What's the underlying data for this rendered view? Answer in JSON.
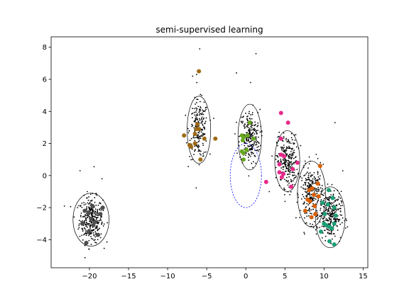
{
  "chart_data": {
    "type": "scatter",
    "title": "semi-supervised learning",
    "xlabel": "",
    "ylabel": "",
    "xlim": [
      -24.9,
      15.6
    ],
    "ylim": [
      -5.75,
      8.65
    ],
    "xticks": [
      -20,
      -15,
      -10,
      -5,
      0,
      5,
      10,
      15
    ],
    "yticks": [
      -4,
      -2,
      0,
      2,
      4,
      6,
      8
    ],
    "grid": false,
    "legend": "none",
    "unlabeled_points": {
      "color": "#000000",
      "clusters": [
        {
          "cx": -19.8,
          "cy": -2.75,
          "sx": 0.75,
          "sy": 0.7,
          "n": 320
        },
        {
          "cx": -6.0,
          "cy": 2.85,
          "sx": 0.6,
          "sy": 0.9,
          "n": 220
        },
        {
          "cx": 0.5,
          "cy": 2.4,
          "sx": 0.65,
          "sy": 0.85,
          "n": 240
        },
        {
          "cx": 5.3,
          "cy": 0.9,
          "sx": 0.65,
          "sy": 0.8,
          "n": 260
        },
        {
          "cx": 8.4,
          "cy": -1.15,
          "sx": 0.7,
          "sy": 0.85,
          "n": 260
        },
        {
          "cx": 10.8,
          "cy": -2.5,
          "sx": 0.7,
          "sy": 0.75,
          "n": 280
        }
      ],
      "outliers": [
        [
          -23.2,
          -1.9
        ],
        [
          -21.2,
          0.3
        ],
        [
          -19.4,
          0.55
        ],
        [
          -18.4,
          -0.2
        ],
        [
          -5.9,
          7.9
        ],
        [
          -6.3,
          6.3
        ],
        [
          -6.8,
          6.2
        ],
        [
          1.3,
          7.6
        ],
        [
          -1.2,
          6.4
        ],
        [
          0.6,
          5.8
        ],
        [
          11.4,
          3.3
        ],
        [
          13.0,
          -3.2
        ],
        [
          12.4,
          0.3
        ],
        [
          9.9,
          0.7
        ],
        [
          3.0,
          -1.0
        ],
        [
          0.6,
          1.2
        ],
        [
          4.1,
          2.4
        ],
        [
          7.4,
          0.5
        ]
      ]
    },
    "labeled_series": [
      {
        "color": "#4d4d4d",
        "points": [
          [
            -20.1,
            -2.3
          ],
          [
            -20.6,
            -2.2
          ],
          [
            -19.6,
            -1.9
          ],
          [
            -19.8,
            -2.7
          ],
          [
            -20.9,
            -3.0
          ],
          [
            -19.5,
            -3.1
          ],
          [
            -18.6,
            -2.4
          ],
          [
            -18.9,
            -3.7
          ],
          [
            -20.1,
            -3.5
          ],
          [
            -19.3,
            -2.9
          ],
          [
            -18.3,
            -2.0
          ],
          [
            -20.4,
            -4.2
          ]
        ]
      },
      {
        "color": "#9e6a14",
        "points": [
          [
            -6.0,
            6.5
          ],
          [
            -7.9,
            2.5
          ],
          [
            -6.5,
            2.6
          ],
          [
            -6.3,
            2.9
          ],
          [
            -6.2,
            3.2
          ],
          [
            -6.0,
            2.9
          ],
          [
            -7.2,
            1.9
          ],
          [
            -7.0,
            1.8
          ],
          [
            -5.8,
            1.0
          ],
          [
            -5.3,
            2.3
          ],
          [
            -3.9,
            2.3
          ],
          [
            -6.5,
            2.0
          ]
        ]
      },
      {
        "color": "#66a61e",
        "points": [
          [
            0.5,
            3.3
          ],
          [
            -0.3,
            2.4
          ],
          [
            -0.5,
            2.5
          ],
          [
            -0.4,
            2.2
          ],
          [
            0.2,
            2.5
          ],
          [
            -0.5,
            1.5
          ],
          [
            -0.3,
            1.4
          ],
          [
            -0.3,
            1.0
          ],
          [
            1.0,
            2.3
          ],
          [
            0.1,
            1.6
          ]
        ]
      },
      {
        "color": "#e7298a",
        "points": [
          [
            4.5,
            3.9
          ],
          [
            5.4,
            3.3
          ],
          [
            4.5,
            2.3
          ],
          [
            4.5,
            1.3
          ],
          [
            4.9,
            1.2
          ],
          [
            4.3,
            0.7
          ],
          [
            4.3,
            0.2
          ],
          [
            4.8,
            0.1
          ],
          [
            4.6,
            -0.1
          ],
          [
            6.0,
            0.4
          ],
          [
            6.6,
            0.8
          ],
          [
            5.8,
            -0.7
          ],
          [
            2.6,
            -0.4
          ]
        ]
      },
      {
        "color": "#d95f02",
        "points": [
          [
            8.5,
            -0.8
          ],
          [
            9.2,
            -0.5
          ],
          [
            9.5,
            0.6
          ],
          [
            8.1,
            -0.9
          ],
          [
            8.7,
            -1.2
          ],
          [
            7.9,
            -1.5
          ],
          [
            8.2,
            -1.6
          ],
          [
            8.8,
            -1.9
          ],
          [
            7.6,
            -2.2
          ],
          [
            8.9,
            -2.4
          ],
          [
            8.4,
            -2.6
          ],
          [
            9.3,
            -1.3
          ]
        ]
      },
      {
        "color": "#1b9e77",
        "points": [
          [
            10.6,
            -0.9
          ],
          [
            11.1,
            -1.4
          ],
          [
            9.8,
            -1.7
          ],
          [
            10.5,
            -1.8
          ],
          [
            11.3,
            -2.0
          ],
          [
            10.1,
            -2.4
          ],
          [
            11.5,
            -2.5
          ],
          [
            10.0,
            -3.0
          ],
          [
            10.3,
            -3.1
          ],
          [
            11.3,
            -3.0
          ],
          [
            10.7,
            -3.2
          ],
          [
            11.0,
            -3.3
          ],
          [
            9.6,
            -3.5
          ],
          [
            10.7,
            -4.1
          ],
          [
            11.3,
            -4.3
          ]
        ]
      }
    ],
    "ellipses": [
      {
        "cx": -19.8,
        "cy": -2.75,
        "rx": 2.3,
        "ry": 1.65,
        "color": "#000000",
        "dashed": false
      },
      {
        "cx": -6.0,
        "cy": 2.85,
        "rx": 1.5,
        "ry": 2.1,
        "color": "#000000",
        "dashed": false
      },
      {
        "cx": 0.5,
        "cy": 2.4,
        "rx": 1.5,
        "ry": 2.05,
        "color": "#000000",
        "dashed": false
      },
      {
        "cx": 5.3,
        "cy": 0.9,
        "rx": 1.6,
        "ry": 1.9,
        "color": "#000000",
        "dashed": false
      },
      {
        "cx": 8.4,
        "cy": -1.15,
        "rx": 1.8,
        "ry": 2.05,
        "color": "#000000",
        "dashed": false
      },
      {
        "cx": 10.8,
        "cy": -2.6,
        "rx": 1.9,
        "ry": 1.9,
        "color": "#000000",
        "dashed": false
      },
      {
        "cx": 0.0,
        "cy": 0.0,
        "rx": 2.0,
        "ry": 2.0,
        "color": "#0000ff",
        "dashed": true
      }
    ]
  }
}
